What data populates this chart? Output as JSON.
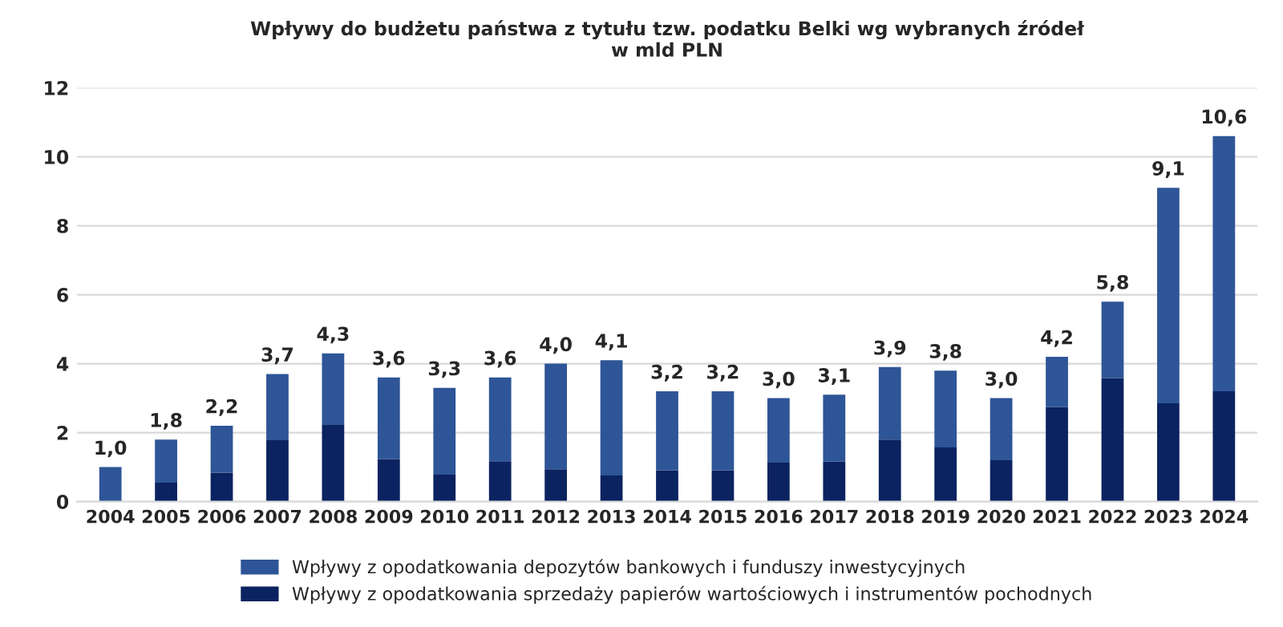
{
  "chart_data": {
    "type": "bar",
    "title": "Wpływy do budżetu państwa z tytułu tzw. podatku Belki wg wybranych źródeł\nw mld PLN",
    "categories": [
      "2004",
      "2005",
      "2006",
      "2007",
      "2008",
      "2009",
      "2010",
      "2011",
      "2012",
      "2013",
      "2014",
      "2015",
      "2016",
      "2017",
      "2018",
      "2019",
      "2020",
      "2021",
      "2022",
      "2023",
      "2024"
    ],
    "stacked": true,
    "series": [
      {
        "name": "Wpływy z opodatkowania sprzedaży papierów wartościowych i instrumentów pochodnych",
        "color": "#0b2360",
        "values": [
          0,
          0.55,
          0.84,
          1.78,
          2.22,
          1.23,
          0.78,
          1.17,
          0.94,
          0.76,
          0.91,
          0.91,
          1.13,
          1.16,
          1.8,
          1.57,
          1.2,
          2.74,
          3.58,
          2.85,
          3.2
        ]
      },
      {
        "name": "Wpływy z opodatkowania depozytów bankowych i funduszy inwestycyjnych",
        "color": "#2e5597",
        "values": [
          1.0,
          1.25,
          1.36,
          1.92,
          2.08,
          2.37,
          2.52,
          2.43,
          3.06,
          3.34,
          2.29,
          2.29,
          1.87,
          1.94,
          2.1,
          2.23,
          1.8,
          1.46,
          2.22,
          6.25,
          7.4
        ]
      }
    ],
    "totals": [
      "1,0",
      "1,8",
      "2,2",
      "3,7",
      "4,3",
      "3,6",
      "3,3",
      "3,6",
      "4,0",
      "4,1",
      "3,2",
      "3,2",
      "3,0",
      "3,1",
      "3,9",
      "3,8",
      "3,0",
      "4,2",
      "5,8",
      "9,1",
      "10,6"
    ],
    "ylim": [
      0,
      12
    ],
    "yticks": [
      0,
      2,
      4,
      6,
      8,
      10,
      12
    ],
    "grid": "y",
    "legend": "bottom"
  }
}
